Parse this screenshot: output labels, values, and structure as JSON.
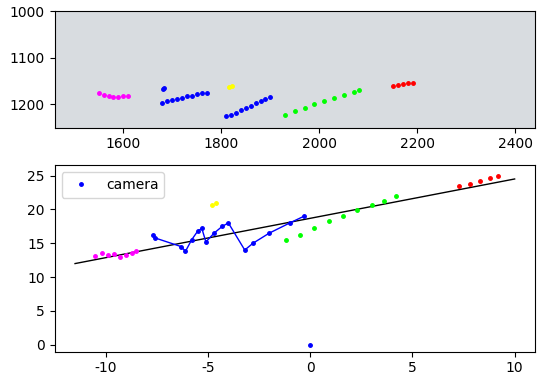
{
  "chart_data": [
    {
      "type": "scatter",
      "xlim": [
        1460,
        2440
      ],
      "ylim": [
        1250,
        1000
      ],
      "xticks": [
        1600,
        1800,
        2000,
        2200,
        2400
      ],
      "yticks": [
        1000,
        1100,
        1200
      ],
      "series": [
        {
          "color": "#ff00ff",
          "marker": "o",
          "line_style": "none",
          "x": [
            1550,
            1560,
            1570,
            1580,
            1590,
            1600,
            1610
          ],
          "values": [
            1176,
            1179,
            1182,
            1185,
            1184,
            1183,
            1181
          ]
        },
        {
          "color": "#0000ff",
          "marker": "o",
          "line_style": "none",
          "x": [
            1682,
            1684,
            1680,
            1690,
            1700,
            1710,
            1720,
            1730,
            1740,
            1750,
            1760,
            1770,
            1810,
            1820,
            1830,
            1840,
            1850,
            1860,
            1870,
            1880,
            1890,
            1900
          ],
          "values": [
            1168,
            1165,
            1196,
            1193,
            1190,
            1188,
            1186,
            1183,
            1181,
            1178,
            1176,
            1175,
            1226,
            1222,
            1218,
            1213,
            1208,
            1203,
            1198,
            1193,
            1188,
            1185
          ]
        },
        {
          "color": "#ffff00",
          "marker": "o",
          "line_style": "none",
          "x": [
            1815,
            1822
          ],
          "values": [
            1163,
            1160
          ]
        },
        {
          "color": "#00ff00",
          "marker": "o",
          "line_style": "none",
          "x": [
            1930,
            1950,
            1970,
            1990,
            2010,
            2030,
            2050,
            2070,
            2080
          ],
          "values": [
            1222,
            1215,
            1208,
            1200,
            1193,
            1186,
            1179,
            1173,
            1170
          ]
        },
        {
          "color": "#ff0000",
          "marker": "o",
          "line_style": "none",
          "x": [
            2150,
            2160,
            2170,
            2180,
            2190
          ],
          "values": [
            1160,
            1158,
            1157,
            1155,
            1153
          ]
        }
      ]
    },
    {
      "type": "scatter",
      "xlim": [
        -12.5,
        11
      ],
      "ylim": [
        -1,
        26.5
      ],
      "xticks": [
        -10,
        -5,
        0,
        5,
        10
      ],
      "yticks": [
        0,
        5,
        10,
        15,
        20,
        25
      ],
      "legend": "upper left",
      "series": [
        {
          "name": "camera",
          "color": "#0000ff",
          "marker": "o",
          "line_style": "none",
          "x": [
            0
          ],
          "values": [
            0
          ]
        },
        {
          "color": "#000000",
          "type": "line",
          "line_style": "solid",
          "x": [
            -11.5,
            10
          ],
          "values": [
            12,
            24.5
          ]
        },
        {
          "color": "#ff00ff",
          "marker": "o",
          "line_style": "none",
          "x": [
            -10.5,
            -10.2,
            -9.9,
            -9.6,
            -9.3,
            -9.0,
            -8.7,
            -8.5
          ],
          "values": [
            13.1,
            13.5,
            13.3,
            13.4,
            12.9,
            13.2,
            13.5,
            13.8
          ]
        },
        {
          "color": "#0000ff",
          "marker": "o",
          "line_style": "solid",
          "x": [
            -7.7,
            -7.6,
            -6.3,
            -6.1,
            -5.8,
            -5.5,
            -5.3,
            -5.1,
            -4.7,
            -4.3,
            -4.0,
            -3.2,
            -2.8,
            -2.0,
            -1.0,
            -0.3
          ],
          "values": [
            16.2,
            15.8,
            14.5,
            13.8,
            15.5,
            16.8,
            17.2,
            15.2,
            16.5,
            17.5,
            18.0,
            14.0,
            15.0,
            16.5,
            18.0,
            19.0
          ]
        },
        {
          "color": "#ffff00",
          "marker": "o",
          "line_style": "none",
          "x": [
            -4.8,
            -4.6
          ],
          "values": [
            20.6,
            20.9
          ]
        },
        {
          "color": "#00ff00",
          "marker": "o",
          "line_style": "none",
          "x": [
            -1.2,
            -0.5,
            0.2,
            0.9,
            1.6,
            2.3,
            3.0,
            3.6,
            4.2
          ],
          "values": [
            15.5,
            16.2,
            17.2,
            18.3,
            19.1,
            19.9,
            20.6,
            21.3,
            22.0
          ]
        },
        {
          "color": "#ff0000",
          "marker": "o",
          "line_style": "none",
          "x": [
            7.3,
            7.8,
            8.3,
            8.8,
            9.2
          ],
          "values": [
            23.5,
            23.8,
            24.2,
            24.6,
            25.0
          ]
        }
      ]
    }
  ]
}
